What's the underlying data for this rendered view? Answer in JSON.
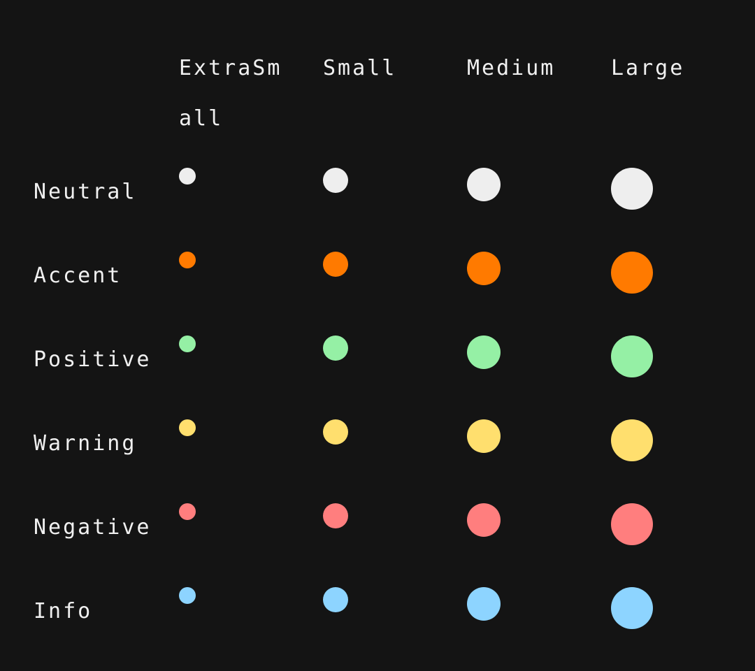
{
  "columns": [
    {
      "key": "extra-small",
      "label": "ExtraSmall"
    },
    {
      "key": "small",
      "label": "Small"
    },
    {
      "key": "medium",
      "label": "Medium"
    },
    {
      "key": "large",
      "label": "Large"
    }
  ],
  "rows": [
    {
      "key": "neutral",
      "label": "Neutral",
      "color": "#eeeeee"
    },
    {
      "key": "accent",
      "label": "Accent",
      "color": "#ff7a00"
    },
    {
      "key": "positive",
      "label": "Positive",
      "color": "#95f0a5"
    },
    {
      "key": "warning",
      "label": "Warning",
      "color": "#ffdf6e"
    },
    {
      "key": "negative",
      "label": "Negative",
      "color": "#ff7e7e"
    },
    {
      "key": "info",
      "label": "Info",
      "color": "#8dd4ff"
    }
  ]
}
